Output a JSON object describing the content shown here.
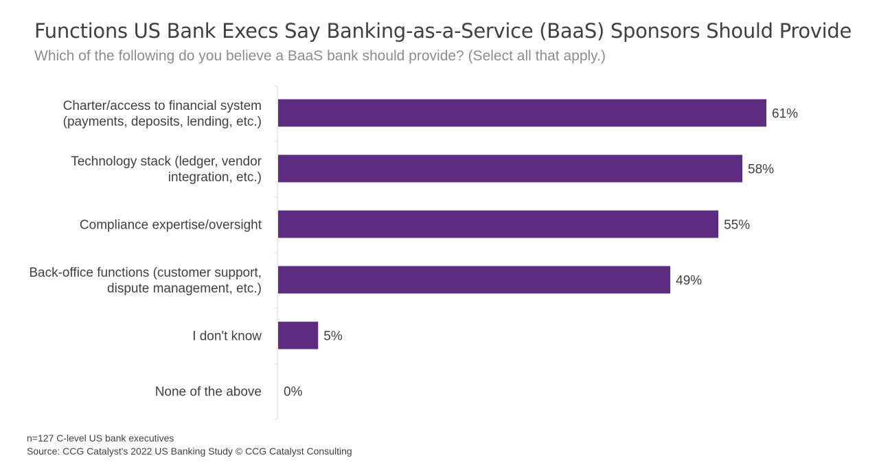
{
  "title": "Functions US Bank Execs Say Banking-as-a-Service (BaaS) Sponsors Should Provide",
  "subtitle": "Which of the following do you believe a BaaS bank should provide? (Select all that apply.)",
  "footnotes": {
    "sample": "n=127 C-level US bank executives",
    "source": "Source: CCG Catalyst's 2022 US Banking Study © CCG Catalyst Consulting"
  },
  "colors": {
    "bar": "#5b2c7f",
    "text": "#404040",
    "axis": "#d9d9d9"
  },
  "chart_data": {
    "type": "bar",
    "orientation": "horizontal",
    "categories": [
      [
        "Charter/access to financial system",
        "(payments, deposits, lending, etc.)"
      ],
      [
        "Technology stack (ledger, vendor",
        "integration, etc.)"
      ],
      [
        "Compliance expertise/oversight"
      ],
      [
        "Back-office functions (customer support,",
        "dispute management, etc.)"
      ],
      [
        "I don't know"
      ],
      [
        "None of the above"
      ]
    ],
    "values": [
      61,
      58,
      55,
      49,
      5,
      0
    ],
    "data_labels": [
      "61%",
      "58%",
      "55%",
      "49%",
      "5%",
      "0%"
    ],
    "unit": "%",
    "xlim": [
      0,
      100
    ],
    "grid": false,
    "legend": false
  }
}
